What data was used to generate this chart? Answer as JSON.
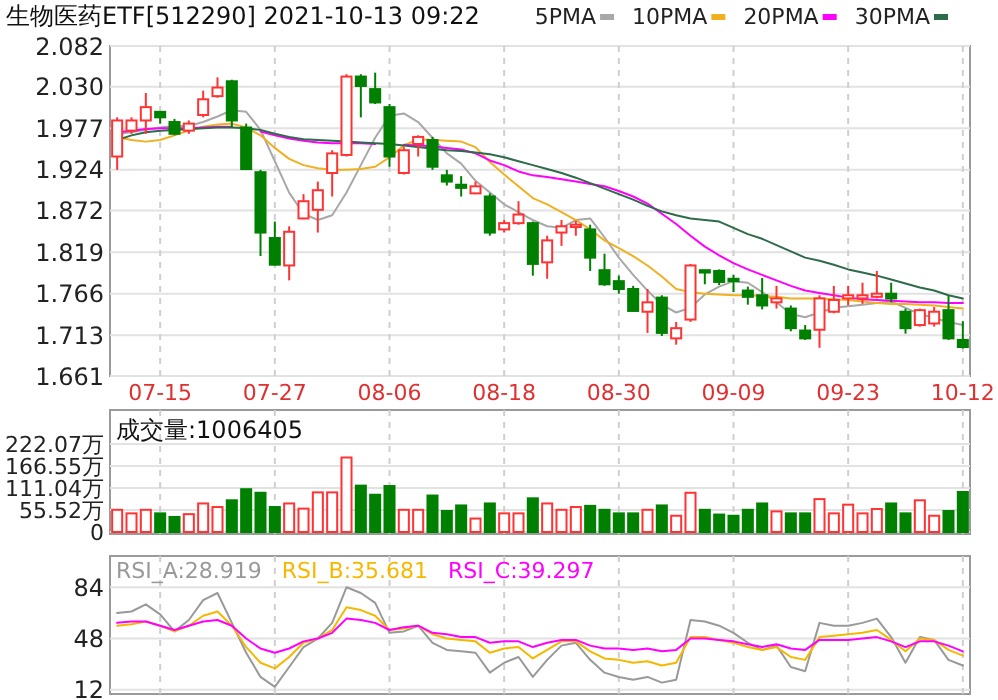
{
  "chart_data": [
    {
      "type": "candlestick",
      "title": "生物医药ETF[512290]  2021-10-13 09:22",
      "legend": "top right",
      "grid": true,
      "categories": [
        null,
        null,
        null,
        "07-15",
        null,
        null,
        null,
        null,
        null,
        null,
        null,
        "07-27",
        null,
        null,
        null,
        null,
        null,
        null,
        null,
        "08-06",
        null,
        null,
        null,
        null,
        null,
        null,
        null,
        "08-18",
        null,
        null,
        null,
        null,
        null,
        null,
        null,
        "08-30",
        null,
        null,
        null,
        null,
        null,
        null,
        null,
        "09-09",
        null,
        null,
        null,
        null,
        null,
        null,
        null,
        "09-23",
        null,
        null,
        null,
        null,
        null,
        null,
        null,
        "10-12"
      ],
      "ohlc": [
        [
          1.941,
          1.991,
          1.924,
          1.987
        ],
        [
          1.974,
          1.991,
          1.97,
          1.987
        ],
        [
          1.987,
          2.022,
          1.97,
          2.004
        ],
        [
          1.998,
          1.998,
          1.983,
          1.991
        ],
        [
          1.985,
          1.989,
          1.968,
          1.97
        ],
        [
          1.974,
          1.987,
          1.97,
          1.983
        ],
        [
          1.994,
          2.025,
          1.991,
          2.014
        ],
        [
          2.018,
          2.042,
          2.016,
          2.029
        ],
        [
          2.037,
          2.039,
          1.978,
          1.987
        ],
        [
          1.978,
          1.983,
          1.924,
          1.925
        ],
        [
          1.921,
          1.924,
          1.814,
          1.844
        ],
        [
          1.837,
          1.858,
          1.802,
          1.803
        ],
        [
          1.802,
          1.852,
          1.783,
          1.845
        ],
        [
          1.862,
          1.893,
          1.861,
          1.884
        ],
        [
          1.873,
          1.909,
          1.844,
          1.898
        ],
        [
          1.92,
          1.949,
          1.89,
          1.945
        ],
        [
          1.943,
          2.046,
          1.941,
          2.043
        ],
        [
          2.043,
          2.046,
          1.991,
          2.031
        ],
        [
          2.027,
          2.048,
          2.008,
          2.01
        ],
        [
          2.004,
          2.008,
          1.928,
          1.941
        ],
        [
          1.92,
          1.953,
          1.918,
          1.949
        ],
        [
          1.957,
          1.968,
          1.941,
          1.966
        ],
        [
          1.962,
          1.966,
          1.924,
          1.928
        ],
        [
          1.917,
          1.924,
          1.904,
          1.909
        ],
        [
          1.905,
          1.916,
          1.89,
          1.901
        ],
        [
          1.894,
          1.909,
          1.893,
          1.903
        ],
        [
          1.89,
          1.894,
          1.84,
          1.844
        ],
        [
          1.848,
          1.86,
          1.844,
          1.856
        ],
        [
          1.856,
          1.884,
          1.854,
          1.867
        ],
        [
          1.856,
          1.858,
          1.789,
          1.804
        ],
        [
          1.806,
          1.84,
          1.785,
          1.834
        ],
        [
          1.844,
          1.86,
          1.827,
          1.852
        ],
        [
          1.851,
          1.859,
          1.84,
          1.854
        ],
        [
          1.848,
          1.854,
          1.795,
          1.812
        ],
        [
          1.796,
          1.817,
          1.776,
          1.778
        ],
        [
          1.782,
          1.789,
          1.766,
          1.772
        ],
        [
          1.772,
          1.776,
          1.743,
          1.744
        ],
        [
          1.743,
          1.772,
          1.716,
          1.755
        ],
        [
          1.761,
          1.764,
          1.712,
          1.716
        ],
        [
          1.709,
          1.73,
          1.701,
          1.722
        ],
        [
          1.733,
          1.804,
          1.73,
          1.802
        ],
        [
          1.796,
          1.796,
          1.778,
          1.793
        ],
        [
          1.795,
          1.797,
          1.777,
          1.781
        ],
        [
          1.785,
          1.79,
          1.768,
          1.782
        ],
        [
          1.77,
          1.775,
          1.752,
          1.762
        ],
        [
          1.764,
          1.786,
          1.746,
          1.751
        ],
        [
          1.755,
          1.776,
          1.747,
          1.76
        ],
        [
          1.747,
          1.751,
          1.718,
          1.722
        ],
        [
          1.719,
          1.726,
          1.707,
          1.709
        ],
        [
          1.72,
          1.764,
          1.697,
          1.76
        ],
        [
          1.743,
          1.776,
          1.741,
          1.758
        ],
        [
          1.76,
          1.776,
          1.751,
          1.764
        ],
        [
          1.76,
          1.78,
          1.753,
          1.764
        ],
        [
          1.762,
          1.795,
          1.76,
          1.766
        ],
        [
          1.766,
          1.78,
          1.755,
          1.76
        ],
        [
          1.743,
          1.747,
          1.715,
          1.722
        ],
        [
          1.726,
          1.747,
          1.724,
          1.745
        ],
        [
          1.728,
          1.749,
          1.724,
          1.743
        ],
        [
          1.745,
          1.763,
          1.707,
          1.709
        ],
        [
          1.707,
          1.731,
          1.696,
          1.698
        ]
      ],
      "colors": [
        "#ff3333",
        "#ff3333",
        "#ff3333",
        "#008000",
        "#008000",
        "#ff3333",
        "#ff3333",
        "#ff3333",
        "#008000",
        "#008000",
        "#008000",
        "#008000",
        "#ff3333",
        "#ff3333",
        "#ff3333",
        "#ff3333",
        "#ff3333",
        "#008000",
        "#008000",
        "#008000",
        "#ff3333",
        "#ff3333",
        "#008000",
        "#008000",
        "#008000",
        "#ff3333",
        "#008000",
        "#ff3333",
        "#ff3333",
        "#008000",
        "#ff3333",
        "#ff3333",
        "#ff3333",
        "#008000",
        "#008000",
        "#008000",
        "#008000",
        "#ff3333",
        "#008000",
        "#ff3333",
        "#ff3333",
        "#008000",
        "#008000",
        "#008000",
        "#008000",
        "#008000",
        "#ff3333",
        "#008000",
        "#008000",
        "#ff3333",
        "#ff3333",
        "#ff3333",
        "#ff3333",
        "#ff3333",
        "#008000",
        "#008000",
        "#ff3333",
        "#ff3333",
        "#008000",
        "#008000"
      ],
      "series": [
        {
          "name": "5PMA",
          "type": "line",
          "color": "#a8a8a8",
          "values": [
            1.97,
            1.972,
            1.975,
            1.978,
            1.98,
            1.98,
            1.985,
            1.992,
            2.0,
            1.998,
            1.975,
            1.935,
            1.895,
            1.868,
            1.86,
            1.866,
            1.895,
            1.93,
            1.965,
            1.993,
            1.996,
            1.985,
            1.965,
            1.945,
            1.932,
            1.91,
            1.895,
            1.88,
            1.87,
            1.86,
            1.852,
            1.85,
            1.86,
            1.862,
            1.838,
            1.812,
            1.79,
            1.77,
            1.752,
            1.742,
            1.748,
            1.765,
            1.775,
            1.782,
            1.78,
            1.768,
            1.755,
            1.74,
            1.736,
            1.742,
            1.748,
            1.75,
            1.752,
            1.754,
            1.756,
            1.748,
            1.74,
            1.735,
            1.73,
            1.726
          ]
        },
        {
          "name": "10PMA",
          "type": "line",
          "color": "#f0b020",
          "values": [
            1.966,
            1.962,
            1.96,
            1.962,
            1.968,
            1.974,
            1.979,
            1.982,
            1.983,
            1.978,
            1.968,
            1.952,
            1.938,
            1.93,
            1.926,
            1.924,
            1.924,
            1.925,
            1.928,
            1.94,
            1.955,
            1.963,
            1.962,
            1.961,
            1.96,
            1.953,
            1.934,
            1.918,
            1.903,
            1.888,
            1.88,
            1.87,
            1.86,
            1.848,
            1.834,
            1.824,
            1.814,
            1.802,
            1.788,
            1.772,
            1.768,
            1.766,
            1.765,
            1.764,
            1.764,
            1.763,
            1.762,
            1.76,
            1.76,
            1.76,
            1.759,
            1.758,
            1.756,
            1.754,
            1.753,
            1.753,
            1.752,
            1.751,
            1.749,
            1.747
          ]
        },
        {
          "name": "20PMA",
          "type": "line",
          "color": "#ff00ff",
          "values": [
            1.972,
            1.974,
            1.976,
            1.977,
            1.977,
            1.977,
            1.978,
            1.979,
            1.979,
            null,
            1.973,
            1.968,
            1.964,
            1.961,
            1.959,
            1.958,
            1.958,
            1.958,
            1.957,
            null,
            1.956,
            1.955,
            1.954,
            1.952,
            1.95,
            1.945,
            1.936,
            1.93,
            1.922,
            1.917,
            1.915,
            1.912,
            1.909,
            1.906,
            1.903,
            1.897,
            1.89,
            1.881,
            1.868,
            1.855,
            1.84,
            1.826,
            1.815,
            1.805,
            1.797,
            1.79,
            1.783,
            1.776,
            1.77,
            1.767,
            1.764,
            1.761,
            1.759,
            1.758,
            1.757,
            1.756,
            1.755,
            1.755,
            1.754,
            1.754
          ]
        },
        {
          "name": "30PMA",
          "type": "line",
          "color": "#2e6b4a",
          "values": [
            1.962,
            1.968,
            1.972,
            1.974,
            1.975,
            1.976,
            1.977,
            1.978,
            1.978,
            1.977,
            1.975,
            1.97,
            1.966,
            1.963,
            1.962,
            1.961,
            1.96,
            1.959,
            1.958,
            1.957,
            1.955,
            1.953,
            1.951,
            1.949,
            1.948,
            1.946,
            1.944,
            1.94,
            1.935,
            1.93,
            1.925,
            1.92,
            1.914,
            1.907,
            1.9,
            1.893,
            1.886,
            1.878,
            1.871,
            1.866,
            1.862,
            1.86,
            1.858,
            1.85,
            1.842,
            1.836,
            1.828,
            1.82,
            1.812,
            1.808,
            1.803,
            1.797,
            1.793,
            1.789,
            1.784,
            1.779,
            1.774,
            1.77,
            1.764,
            1.76
          ]
        }
      ],
      "ylim": [
        1.661,
        2.082
      ],
      "yticks": [
        1.661,
        1.713,
        1.766,
        1.819,
        1.872,
        1.924,
        1.977,
        {
          "value": 2.03,
          "label": "2.030"
        },
        2.082
      ]
    },
    {
      "type": "bar",
      "title": "成交量:1006405",
      "grid": true,
      "categories": [
        null,
        null,
        null,
        null,
        null,
        null,
        null,
        null,
        null,
        null,
        null,
        null,
        null,
        null,
        null,
        null,
        null,
        null,
        null,
        null,
        null,
        null,
        null,
        null,
        null,
        null,
        null,
        null,
        null,
        null,
        null,
        null,
        null,
        null,
        null,
        null,
        null,
        null,
        null,
        null,
        null,
        null,
        null,
        null,
        null,
        null,
        null,
        null,
        null,
        null,
        null,
        null,
        null,
        null,
        null,
        null,
        null,
        null,
        null,
        null
      ],
      "values": [
        56,
        47,
        56,
        47,
        38,
        45,
        72,
        63,
        80,
        108,
        99,
        63,
        72,
        59,
        100,
        100,
        188,
        117,
        94,
        116,
        56,
        56,
        92,
        53,
        67,
        34,
        72,
        47,
        47,
        85,
        72,
        56,
        63,
        66,
        56,
        47,
        47,
        56,
        67,
        41,
        99,
        56,
        44,
        41,
        56,
        72,
        52,
        47,
        47,
        83,
        47,
        69,
        47,
        58,
        72,
        47,
        80,
        41,
        53,
        101
      ],
      "colors": [
        "#ff3333",
        "#ff3333",
        "#ff3333",
        "#008000",
        "#008000",
        "#ff3333",
        "#ff3333",
        "#ff3333",
        "#008000",
        "#008000",
        "#008000",
        "#008000",
        "#ff3333",
        "#ff3333",
        "#ff3333",
        "#ff3333",
        "#ff3333",
        "#008000",
        "#008000",
        "#008000",
        "#ff3333",
        "#ff3333",
        "#008000",
        "#008000",
        "#008000",
        "#ff3333",
        "#008000",
        "#ff3333",
        "#ff3333",
        "#008000",
        "#ff3333",
        "#ff3333",
        "#ff3333",
        "#008000",
        "#008000",
        "#008000",
        "#008000",
        "#ff3333",
        "#008000",
        "#ff3333",
        "#ff3333",
        "#008000",
        "#008000",
        "#008000",
        "#008000",
        "#008000",
        "#ff3333",
        "#008000",
        "#008000",
        "#ff3333",
        "#ff3333",
        "#ff3333",
        "#ff3333",
        "#ff3333",
        "#008000",
        "#008000",
        "#ff3333",
        "#ff3333",
        "#008000",
        "#008000"
      ],
      "ylim": [
        0,
        222.07
      ],
      "yticks": [
        0,
        {
          "value": 55.52,
          "label": "55.52万"
        },
        {
          "value": 111.04,
          "label": "111.04万"
        },
        {
          "value": 166.55,
          "label": "166.55万"
        },
        {
          "value": 222.07,
          "label": "222.07万"
        }
      ]
    },
    {
      "type": "line",
      "legend": "top left",
      "grid": true,
      "categories": [
        null,
        null,
        null,
        null,
        null,
        null,
        null,
        null,
        null,
        null,
        null,
        null,
        null,
        null,
        null,
        null,
        null,
        null,
        null,
        null,
        null,
        null,
        null,
        null,
        null,
        null,
        null,
        null,
        null,
        null,
        null,
        null,
        null,
        null,
        null,
        null,
        null,
        null,
        null,
        null,
        null,
        null,
        null,
        null,
        null,
        null,
        null,
        null,
        null,
        null,
        null,
        null,
        null,
        null,
        null,
        null,
        null,
        null,
        null,
        null
      ],
      "series": [
        {
          "name": "RSI_A:28.919",
          "color": "#999999",
          "values": [
            66,
            67,
            72,
            65,
            53,
            61,
            75,
            80,
            59,
            38,
            21,
            14,
            28,
            42,
            48,
            59,
            84,
            80,
            73,
            52,
            53,
            57,
            45,
            40,
            39,
            38,
            24,
            31,
            35,
            21,
            33,
            43,
            45,
            33,
            24,
            21,
            19,
            21,
            17,
            19,
            61,
            60,
            57,
            52,
            45,
            40,
            43,
            28,
            25,
            59,
            57,
            57,
            59,
            62,
            49,
            31,
            49,
            47,
            33,
            29
          ]
        },
        {
          "name": "RSI_B:35.681",
          "color": "#f5b800",
          "values": [
            57,
            58,
            60,
            57,
            53,
            57,
            64,
            67,
            57,
            42,
            31,
            27,
            35,
            45,
            48,
            54,
            70,
            68,
            64,
            54,
            55,
            57,
            51,
            48,
            47,
            46,
            38,
            41,
            42,
            34,
            40,
            46,
            46,
            39,
            34,
            33,
            31,
            32,
            29,
            31,
            49,
            49,
            47,
            45,
            42,
            40,
            42,
            35,
            33,
            49,
            50,
            51,
            52,
            54,
            47,
            39,
            48,
            47,
            40,
            36
          ]
        },
        {
          "name": "RSI_C:39.297",
          "color": "#ff00ff",
          "values": [
            59,
            60,
            60,
            57,
            54,
            57,
            60,
            61,
            57,
            48,
            41,
            38,
            41,
            46,
            48,
            52,
            62,
            61,
            59,
            54,
            56,
            57,
            52,
            51,
            49,
            49,
            45,
            46,
            46,
            42,
            45,
            47,
            47,
            43,
            41,
            41,
            40,
            41,
            39,
            40,
            48,
            48,
            47,
            46,
            44,
            42,
            44,
            41,
            40,
            47,
            47,
            47,
            48,
            49,
            46,
            42,
            46,
            46,
            43,
            39
          ]
        }
      ],
      "ylim": [
        9,
        106
      ],
      "yticks": [
        12,
        48,
        84
      ]
    }
  ]
}
